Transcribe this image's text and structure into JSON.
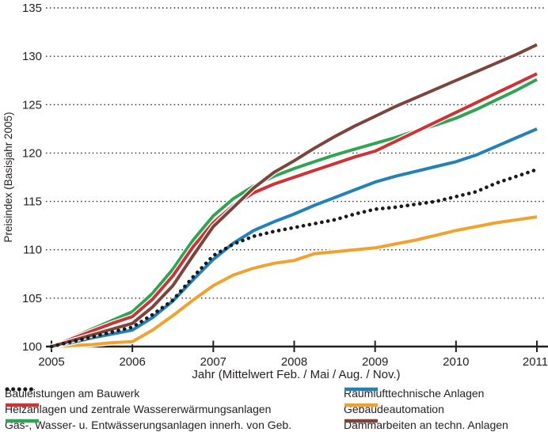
{
  "figure": {
    "background_color": "#ffffff",
    "text_color": "#231f20",
    "grid_color": "#2b2b2b",
    "axis_color": "#231f20"
  },
  "chart_data": {
    "type": "line",
    "title": "",
    "xlabel": "Jahr (Mittelwert Feb. / Mai / Aug. / Nov.)",
    "ylabel": "Preisindex (Basisjahr 2005)",
    "xlim": [
      2005,
      2011
    ],
    "ylim": [
      100,
      135
    ],
    "x_ticks": [
      2005,
      2006,
      2007,
      2008,
      2009,
      2010,
      2011
    ],
    "y_ticks": [
      100,
      105,
      110,
      115,
      120,
      125,
      130,
      135
    ],
    "grid": "horizontal dotted gridlines at every 5 units, no vertical gridlines, no left axis line",
    "legend_position": "below chart, two columns",
    "x": [
      2005,
      2005.25,
      2005.5,
      2005.75,
      2006,
      2006.25,
      2006.5,
      2006.75,
      2007,
      2007.25,
      2007.5,
      2007.75,
      2008,
      2008.25,
      2008.5,
      2008.75,
      2009,
      2009.25,
      2009.5,
      2009.75,
      2010,
      2010.25,
      2010.5,
      2010.75,
      2011
    ],
    "series": [
      {
        "name": "Bauleistungen am Bauwerk",
        "color": "#1a1a1a",
        "style": "dotted",
        "z": 6,
        "legend_col": 0,
        "legend_row": 0,
        "values": [
          100,
          100.5,
          101.0,
          101.5,
          102.0,
          103.3,
          104.8,
          107.2,
          109.4,
          110.6,
          111.4,
          111.9,
          112.3,
          112.7,
          113.1,
          113.7,
          114.2,
          114.4,
          114.7,
          115.0,
          115.5,
          116.0,
          116.9,
          117.6,
          118.3
        ]
      },
      {
        "name": "Heizanlagen und zentrale Wassererwärmungsanlagen",
        "color": "#cd3335",
        "style": "solid",
        "z": 4,
        "legend_col": 0,
        "legend_row": 1,
        "values": [
          100,
          100.8,
          101.6,
          102.4,
          103.1,
          104.9,
          107.3,
          110.3,
          112.8,
          114.6,
          115.9,
          116.8,
          117.5,
          118.2,
          118.9,
          119.6,
          120.2,
          121.2,
          122.2,
          123.2,
          124.2,
          125.2,
          126.2,
          127.2,
          128.2
        ]
      },
      {
        "name": "Gas-, Wasser- u. Entwässerungsanlagen innerh. von Geb.",
        "color": "#2fa455",
        "style": "solid",
        "z": 3,
        "legend_col": 0,
        "legend_row": 2,
        "values": [
          100,
          100.9,
          101.8,
          102.7,
          103.6,
          105.5,
          108.0,
          111.0,
          113.5,
          115.3,
          116.6,
          117.6,
          118.4,
          119.1,
          119.8,
          120.4,
          121.0,
          121.6,
          122.3,
          122.9,
          123.6,
          124.5,
          125.5,
          126.5,
          127.6
        ]
      },
      {
        "name": "Raumlufttechnische Anlagen",
        "color": "#2381b5",
        "style": "solid",
        "z": 2,
        "legend_col": 1,
        "legend_row": 0,
        "values": [
          100,
          100.4,
          100.9,
          101.3,
          101.7,
          103.0,
          104.7,
          106.9,
          109.0,
          110.7,
          112.0,
          112.9,
          113.7,
          114.6,
          115.4,
          116.2,
          117.0,
          117.6,
          118.1,
          118.6,
          119.1,
          119.8,
          120.7,
          121.6,
          122.5
        ]
      },
      {
        "name": "Gebäudeautomation",
        "color": "#efa32e",
        "style": "solid",
        "z": 1,
        "legend_col": 1,
        "legend_row": 1,
        "values": [
          100,
          100.1,
          100.2,
          100.4,
          100.5,
          101.7,
          103.2,
          104.8,
          106.3,
          107.4,
          108.1,
          108.6,
          108.9,
          109.6,
          109.8,
          110.0,
          110.2,
          110.6,
          111.0,
          111.5,
          112.0,
          112.4,
          112.8,
          113.1,
          113.4
        ]
      },
      {
        "name": "Dämmarbeiten an techn. Anlagen",
        "color": "#7c453c",
        "style": "solid",
        "z": 5,
        "legend_col": 1,
        "legend_row": 2,
        "values": [
          100,
          100.6,
          101.2,
          101.8,
          102.4,
          104.1,
          106.3,
          109.4,
          112.4,
          114.4,
          116.4,
          118.0,
          119.2,
          120.5,
          121.7,
          122.8,
          123.8,
          124.8,
          125.7,
          126.6,
          127.5,
          128.4,
          129.3,
          130.2,
          131.2
        ]
      }
    ]
  }
}
